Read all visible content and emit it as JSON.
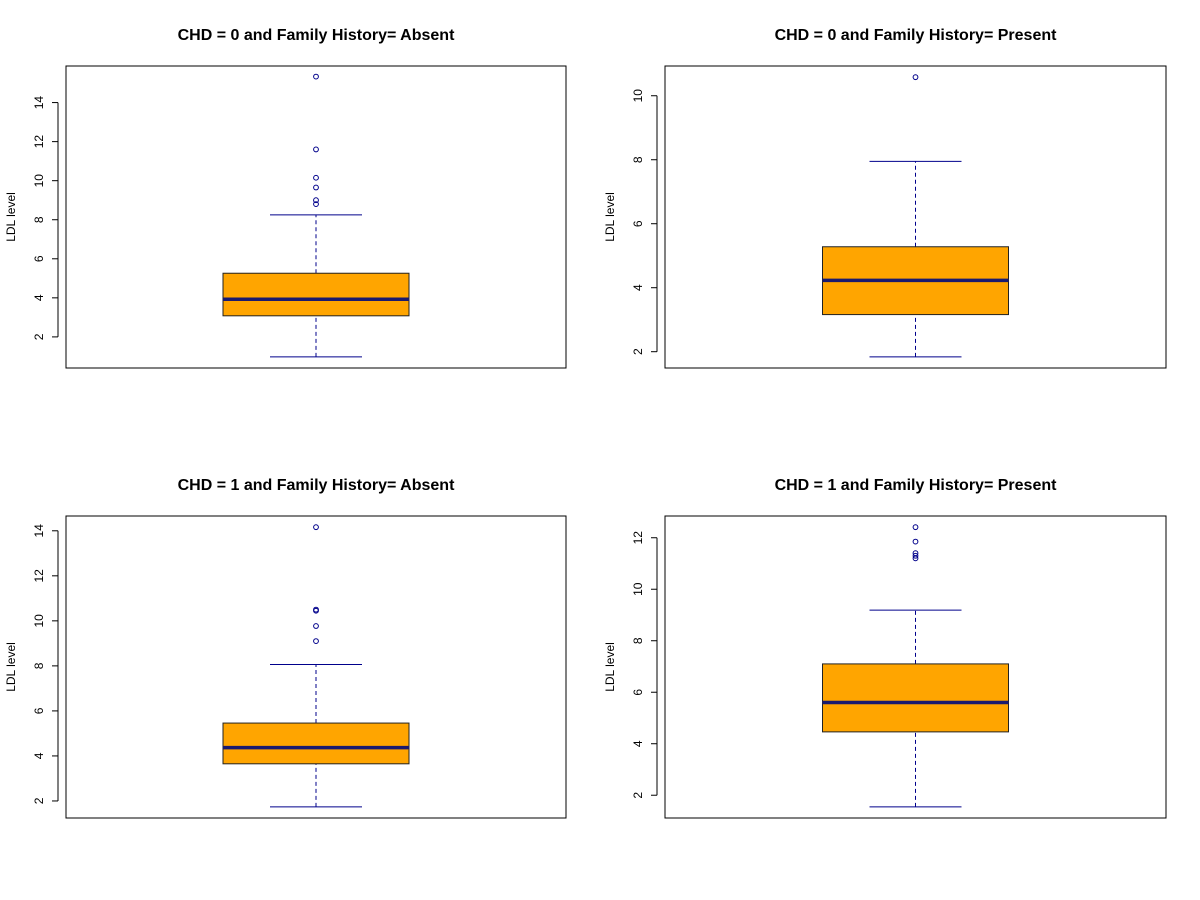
{
  "colors": {
    "box_fill": "#ffa500",
    "median": "#1a1a6e",
    "whisker": "#00008b",
    "outlier": "#00008b",
    "frame": "#000000"
  },
  "chart_data": [
    {
      "type": "box",
      "title": "CHD = 0 and Family History= Absent",
      "ylabel": "LDL level",
      "xlabel": "",
      "ylim": [
        0.98,
        15.3
      ],
      "yticks": [
        2,
        4,
        6,
        8,
        10,
        12,
        14
      ],
      "box": {
        "whisker_low": 0.98,
        "q1": 3.08,
        "median": 3.93,
        "q3": 5.26,
        "whisker_high": 8.25
      },
      "outliers": [
        8.8,
        9.0,
        9.65,
        10.15,
        11.6,
        15.33
      ]
    },
    {
      "type": "box",
      "title": "CHD = 0 and Family History= Present",
      "ylabel": "LDL level",
      "xlabel": "",
      "ylim": [
        1.84,
        10.58
      ],
      "yticks": [
        2,
        4,
        6,
        8,
        10
      ],
      "box": {
        "whisker_low": 1.84,
        "q1": 3.16,
        "median": 4.23,
        "q3": 5.28,
        "whisker_high": 7.95
      },
      "outliers": [
        10.58
      ]
    },
    {
      "type": "box",
      "title": "CHD = 1 and Family History= Absent",
      "ylabel": "LDL level",
      "xlabel": "",
      "ylim": [
        1.74,
        14.16
      ],
      "yticks": [
        2,
        4,
        6,
        8,
        10,
        12,
        14
      ],
      "box": {
        "whisker_low": 1.74,
        "q1": 3.65,
        "median": 4.37,
        "q3": 5.46,
        "whisker_high": 8.06
      },
      "outliers": [
        9.1,
        9.77,
        10.45,
        10.5,
        14.16
      ]
    },
    {
      "type": "box",
      "title": "CHD = 1 and Family History= Present",
      "ylabel": "LDL level",
      "xlabel": "",
      "ylim": [
        1.55,
        12.41
      ],
      "yticks": [
        2,
        4,
        6,
        8,
        10,
        12
      ],
      "box": {
        "whisker_low": 1.55,
        "q1": 4.46,
        "median": 5.6,
        "q3": 7.1,
        "whisker_high": 9.19
      },
      "outliers": [
        11.2,
        11.3,
        11.4,
        11.85,
        12.41
      ]
    }
  ]
}
